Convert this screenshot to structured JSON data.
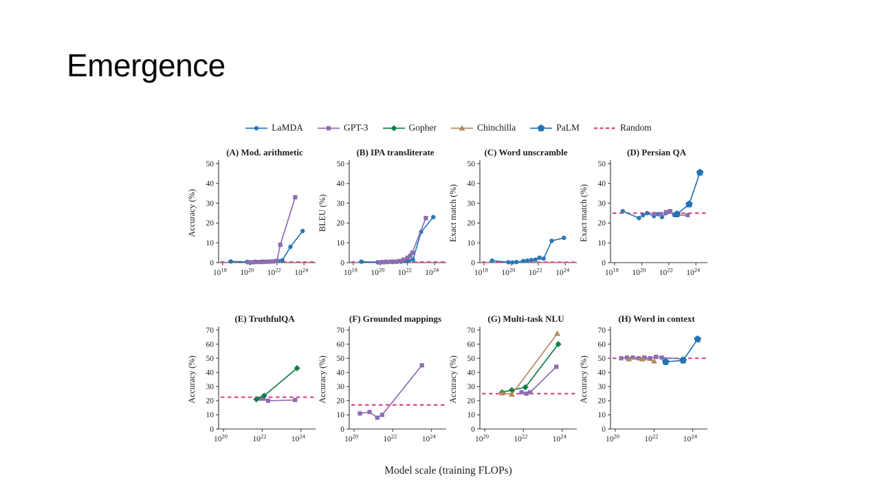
{
  "slide": {
    "title": "Emergence"
  },
  "figure": {
    "xlabel": "Model scale (training FLOPs)",
    "axis_color": "#333333",
    "legend": [
      {
        "name": "LaMDA",
        "marker": "circle",
        "color": "#2878b5",
        "line": "solid"
      },
      {
        "name": "GPT-3",
        "marker": "square",
        "color": "#8d6cb0",
        "line": "solid"
      },
      {
        "name": "Gopher",
        "marker": "diamond",
        "color": "#0e7f45",
        "line": "solid"
      },
      {
        "name": "Chinchilla",
        "marker": "triangle",
        "color": "#b08a5e",
        "line": "solid"
      },
      {
        "name": "PaLM",
        "marker": "pentagon",
        "color": "#2173b4",
        "line": "solid"
      },
      {
        "name": "Random",
        "marker": "none",
        "color": "#dd3e75",
        "line": "dashed"
      }
    ]
  },
  "chart_data": [
    {
      "id": "A",
      "type": "line",
      "title": "(A) Mod. arithmetic",
      "ylabel": "Accuracy (%)",
      "x_unit": "log10 training FLOPs",
      "xlim": [
        17.7,
        24.7
      ],
      "xticks": [
        18,
        20,
        22,
        24
      ],
      "ylim": [
        0,
        50
      ],
      "yticks": [
        0,
        10,
        20,
        30,
        40,
        50
      ],
      "random_baseline": 0.3,
      "series": [
        {
          "name": "LaMDA",
          "x": [
            18.6,
            19.8,
            20.1,
            20.4,
            20.9,
            21.2,
            21.5,
            21.8,
            22.1,
            22.4,
            23.0,
            23.9
          ],
          "y": [
            0.6,
            0.4,
            0.1,
            0.5,
            0.5,
            0.4,
            0.5,
            0.6,
            0.8,
            1.2,
            8,
            16
          ]
        },
        {
          "name": "GPT-3",
          "x": [
            19.9,
            20.2,
            20.5,
            20.8,
            21.1,
            21.4,
            21.7,
            22.0,
            22.25,
            23.35
          ],
          "y": [
            0.2,
            0.2,
            0.3,
            0.3,
            0.4,
            0.5,
            0.6,
            0.9,
            9,
            33
          ]
        }
      ]
    },
    {
      "id": "B",
      "type": "line",
      "title": "(B) IPA transliterate",
      "ylabel": "BLEU (%)",
      "x_unit": "log10 training FLOPs",
      "xlim": [
        17.7,
        24.7
      ],
      "xticks": [
        18,
        20,
        22,
        24
      ],
      "ylim": [
        0,
        50
      ],
      "yticks": [
        0,
        10,
        20,
        30,
        40,
        50
      ],
      "random_baseline": 0.3,
      "series": [
        {
          "name": "LaMDA",
          "x": [
            18.6,
            19.8,
            20.1,
            20.4,
            20.9,
            21.2,
            21.5,
            21.8,
            22.1,
            22.4,
            23.0,
            23.9
          ],
          "y": [
            0.5,
            0.2,
            0.3,
            0.5,
            0.3,
            0.4,
            0.5,
            0.8,
            1.2,
            1.5,
            15.5,
            23
          ]
        },
        {
          "name": "GPT-3",
          "x": [
            19.9,
            20.2,
            20.5,
            20.8,
            21.1,
            21.4,
            21.7,
            22.0,
            22.2,
            22.35,
            23.35
          ],
          "y": [
            0.1,
            0.2,
            0.3,
            0.5,
            0.5,
            0.8,
            1.5,
            2.5,
            3.5,
            5,
            22.5
          ]
        }
      ]
    },
    {
      "id": "C",
      "type": "line",
      "title": "(C) Word unscramble",
      "ylabel": "Exact match (%)",
      "x_unit": "log10 training FLOPs",
      "xlim": [
        17.7,
        24.7
      ],
      "xticks": [
        18,
        20,
        22,
        24
      ],
      "ylim": [
        0,
        50
      ],
      "yticks": [
        0,
        10,
        20,
        30,
        40,
        50
      ],
      "random_baseline": 0.2,
      "series": [
        {
          "name": "LaMDA",
          "x": [
            18.6,
            19.8,
            20.1,
            20.4,
            20.9,
            21.2,
            21.5,
            21.8,
            22.1,
            22.4,
            23.0,
            23.9
          ],
          "y": [
            1.0,
            0.2,
            0.1,
            0.3,
            0.8,
            1.0,
            1.3,
            1.5,
            2.5,
            2.0,
            11,
            12.5
          ]
        }
      ]
    },
    {
      "id": "D",
      "type": "line",
      "title": "(D) Persian QA",
      "ylabel": "Exact match (%)",
      "x_unit": "log10 training FLOPs",
      "xlim": [
        17.7,
        24.7
      ],
      "xticks": [
        18,
        20,
        22,
        24
      ],
      "ylim": [
        0,
        50
      ],
      "yticks": [
        0,
        10,
        20,
        30,
        40,
        50
      ],
      "random_baseline": 25,
      "series": [
        {
          "name": "LaMDA",
          "x": [
            18.6,
            19.8,
            20.1,
            20.4,
            20.9,
            21.2,
            21.5,
            21.8,
            22.1,
            22.4,
            22.6
          ],
          "y": [
            26,
            22.5,
            24,
            25,
            23.5,
            24.5,
            23,
            25,
            26,
            24,
            24.5
          ]
        },
        {
          "name": "GPT-3",
          "x": [
            20.9,
            21.4,
            21.8,
            22.1,
            22.5,
            23.4
          ],
          "y": [
            24.5,
            24.5,
            25.5,
            26,
            24,
            24
          ]
        },
        {
          "name": "PaLM",
          "x": [
            22.6,
            23.5,
            24.3
          ],
          "y": [
            24.5,
            29.5,
            45.5
          ]
        }
      ]
    },
    {
      "id": "E",
      "type": "line",
      "title": "(E) TruthfulQA",
      "ylabel": "Accuracy (%)",
      "x_unit": "log10 training FLOPs",
      "xlim": [
        19.75,
        24.65
      ],
      "xticks": [
        20,
        22,
        24
      ],
      "ylim": [
        0,
        70
      ],
      "yticks": [
        0,
        10,
        20,
        30,
        40,
        50,
        60,
        70
      ],
      "random_baseline": 22.5,
      "series": [
        {
          "name": "GPT-3",
          "x": [
            21.85,
            22.05,
            22.3,
            23.7
          ],
          "y": [
            21.5,
            21.5,
            20,
            20.5
          ]
        },
        {
          "name": "Gopher",
          "x": [
            21.7,
            22.1,
            23.8
          ],
          "y": [
            21,
            23.5,
            43
          ]
        }
      ]
    },
    {
      "id": "F",
      "type": "line",
      "title": "(F) Grounded mappings",
      "ylabel": "Accuracy (%)",
      "x_unit": "log10 training FLOPs",
      "xlim": [
        19.75,
        24.65
      ],
      "xticks": [
        20,
        22,
        24
      ],
      "ylim": [
        0,
        70
      ],
      "yticks": [
        0,
        10,
        20,
        30,
        40,
        50,
        60,
        70
      ],
      "random_baseline": 17,
      "series": [
        {
          "name": "GPT-3",
          "x": [
            20.3,
            20.8,
            21.2,
            21.45,
            23.5
          ],
          "y": [
            11,
            12,
            8,
            10,
            45
          ]
        }
      ]
    },
    {
      "id": "G",
      "type": "line",
      "title": "(G) Multi-task NLU",
      "ylabel": "Accuracy (%)",
      "x_unit": "log10 training FLOPs",
      "xlim": [
        19.75,
        24.65
      ],
      "xticks": [
        20,
        22,
        24
      ],
      "ylim": [
        0,
        70
      ],
      "yticks": [
        0,
        10,
        20,
        30,
        40,
        50,
        60,
        70
      ],
      "random_baseline": 25,
      "series": [
        {
          "name": "GPT-3",
          "x": [
            21.9,
            22.15,
            22.35,
            23.7
          ],
          "y": [
            26,
            25,
            26,
            44
          ]
        },
        {
          "name": "Gopher",
          "x": [
            20.9,
            21.4,
            22.1,
            23.8
          ],
          "y": [
            26,
            27.5,
            29.5,
            60
          ]
        },
        {
          "name": "Chinchilla",
          "x": [
            20.9,
            21.4,
            23.75
          ],
          "y": [
            25.5,
            24.5,
            67.5
          ]
        }
      ]
    },
    {
      "id": "H",
      "type": "line",
      "title": "(H) Word in context",
      "ylabel": "Accuracy (%)",
      "x_unit": "log10 training FLOPs",
      "xlim": [
        19.75,
        24.65
      ],
      "xticks": [
        20,
        22,
        24
      ],
      "ylim": [
        0,
        70
      ],
      "yticks": [
        0,
        10,
        20,
        30,
        40,
        50,
        60,
        70
      ],
      "random_baseline": 50,
      "series": [
        {
          "name": "GPT-3",
          "x": [
            20.3,
            20.6,
            20.9,
            21.2,
            21.5,
            21.8,
            22.1,
            22.4,
            23.5
          ],
          "y": [
            50,
            50.5,
            50.5,
            50,
            50.5,
            50,
            51,
            50.5,
            49.5
          ]
        },
        {
          "name": "Chinchilla",
          "x": [
            20.7,
            21.4,
            22.0
          ],
          "y": [
            49.5,
            49.5,
            48
          ]
        },
        {
          "name": "PaLM",
          "x": [
            22.6,
            23.5,
            24.25
          ],
          "y": [
            47.5,
            48.5,
            63.5
          ]
        }
      ]
    }
  ]
}
